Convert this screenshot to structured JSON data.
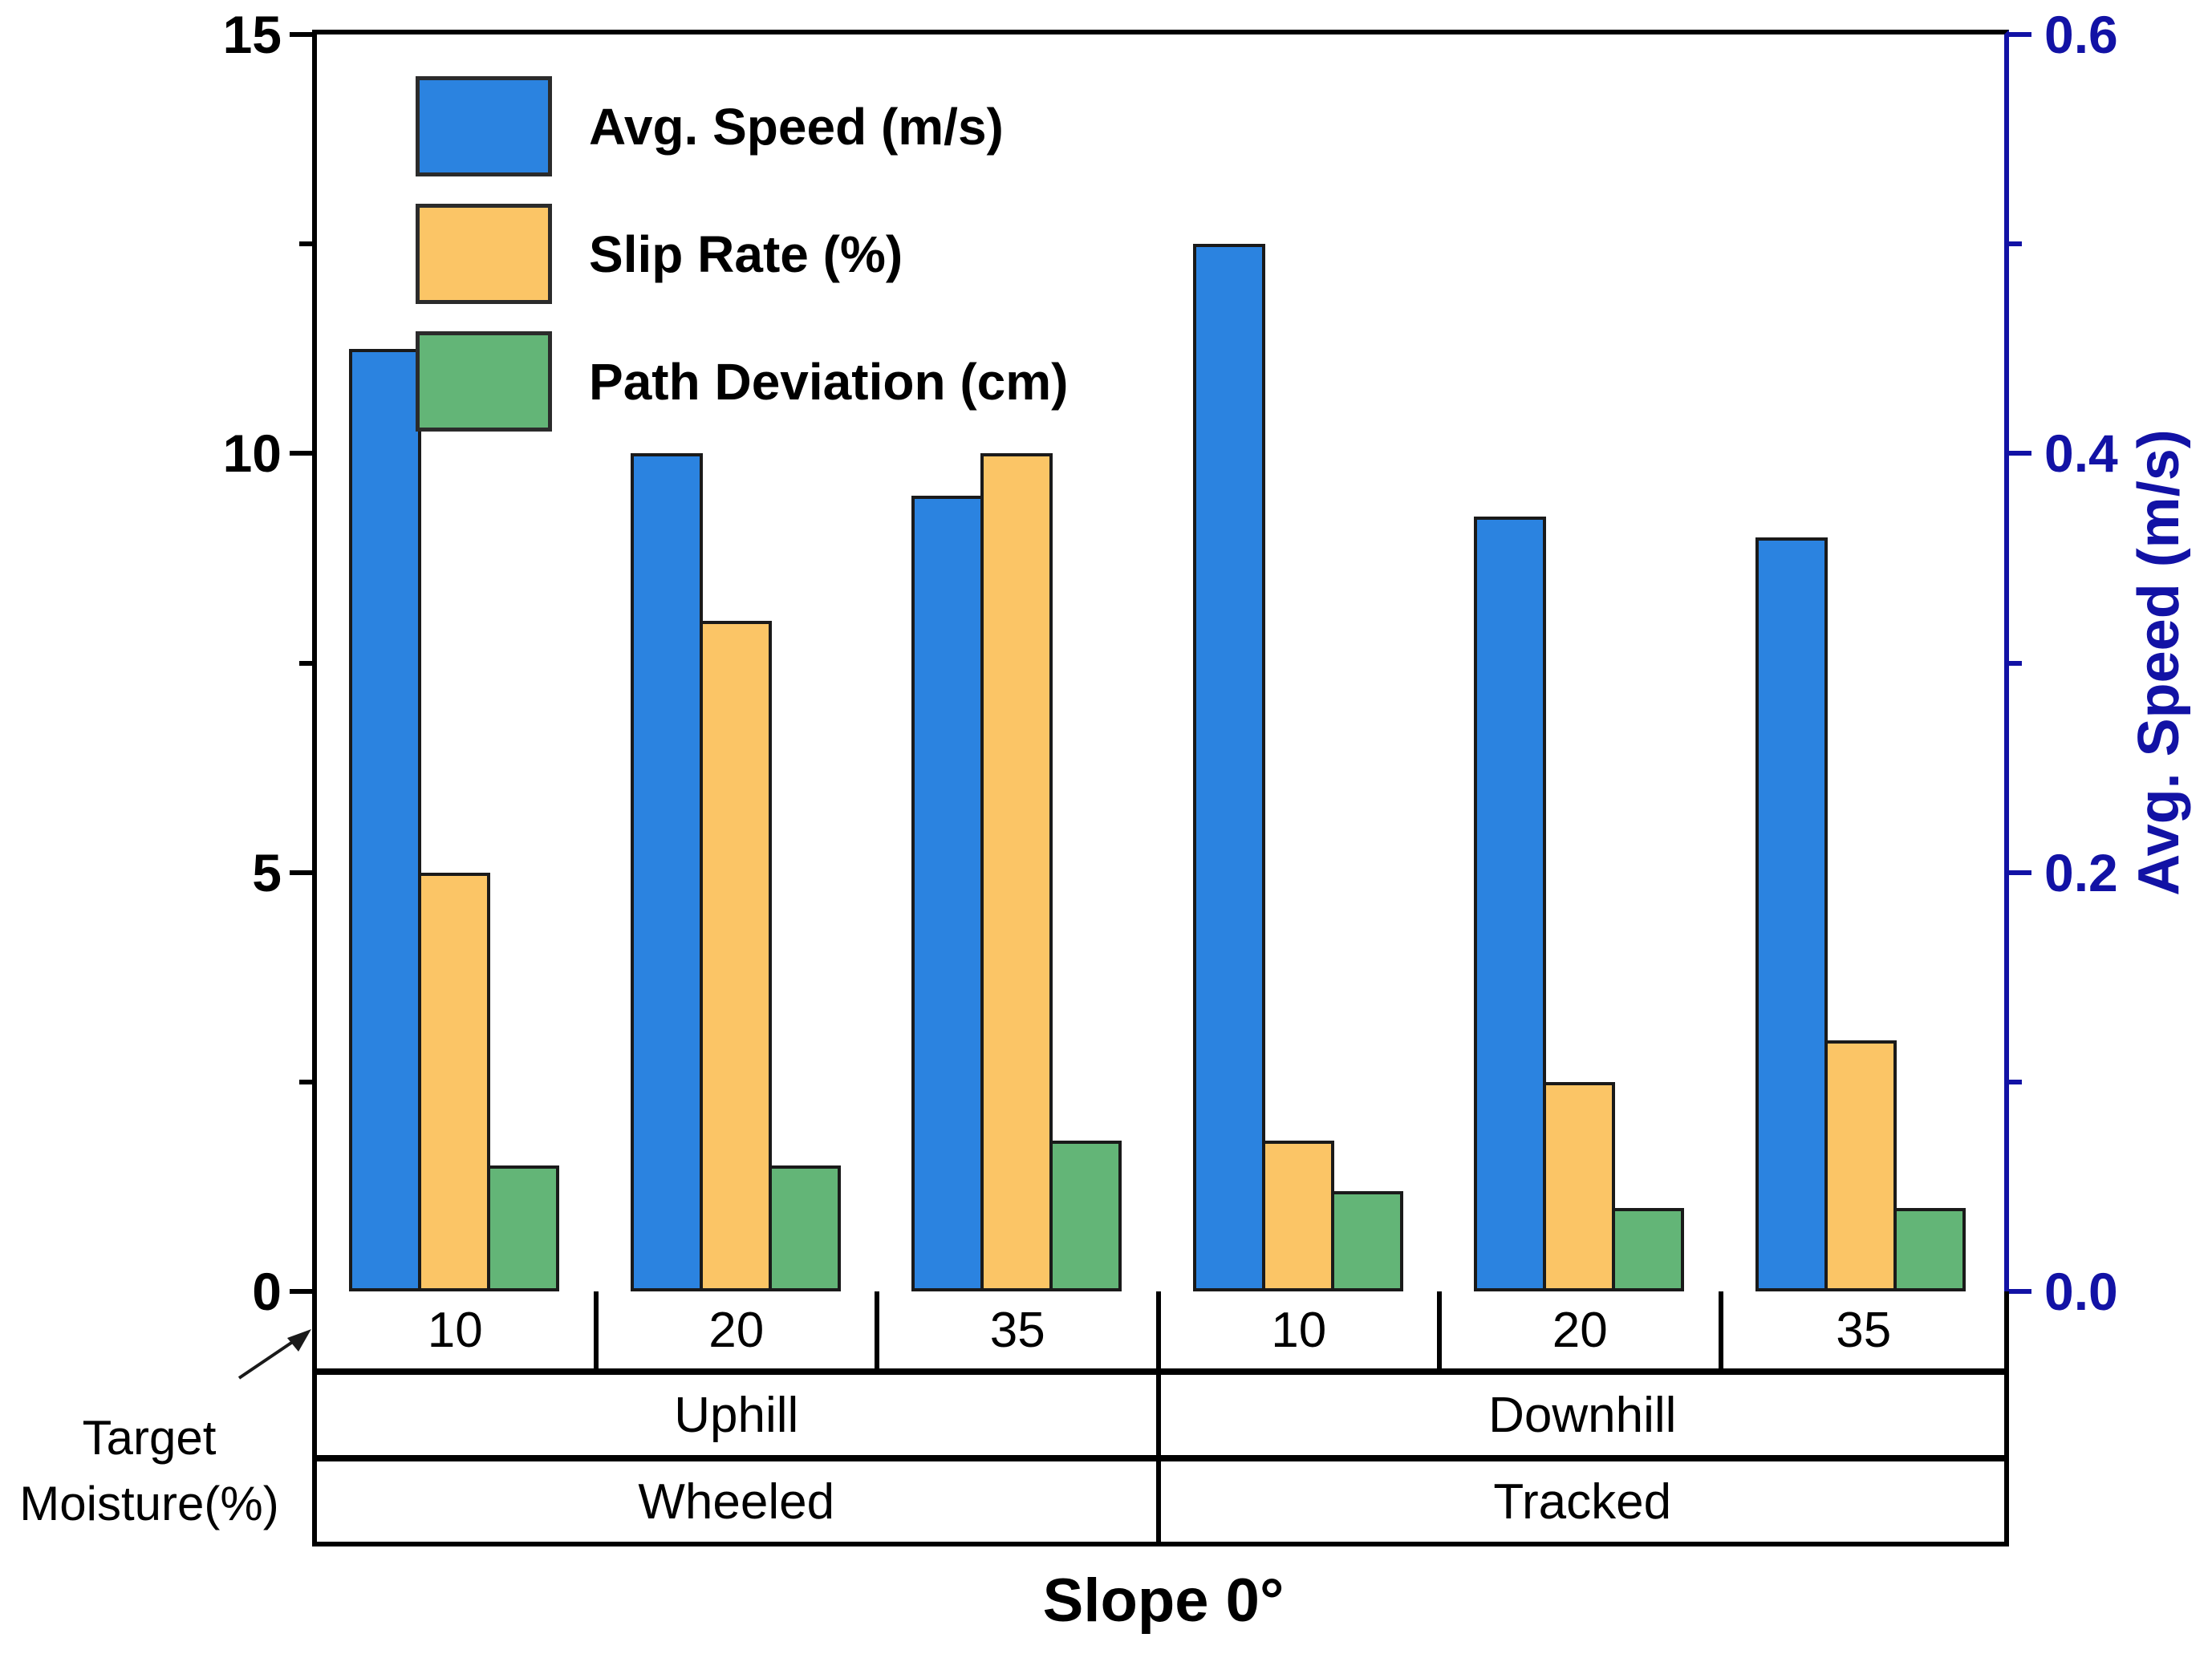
{
  "figure": {
    "title": "Slope 0°",
    "row_caption_line1": "Target",
    "row_caption_line2": "Moisture(%)"
  },
  "chart_data": {
    "type": "bar",
    "title": "Slope 0°",
    "legend_position": "top-left",
    "grid": false,
    "left_axis": {
      "range": [
        0,
        15
      ],
      "ticks": [
        0,
        5,
        10,
        15
      ],
      "tick_labels": [
        "0",
        "5",
        "10",
        "15"
      ],
      "minor_ticks": [
        2.5,
        7.5,
        12.5
      ]
    },
    "right_axis": {
      "label": "Avg. Speed (m/s)",
      "range": [
        0,
        0.6
      ],
      "ticks": [
        0,
        0.2,
        0.4,
        0.6
      ],
      "tick_labels": [
        "0.0",
        "0.2",
        "0.4",
        "0.6"
      ],
      "minor_ticks": [
        0.1,
        0.3,
        0.5
      ],
      "color": "#1212A5"
    },
    "categories_moisture": [
      "10",
      "20",
      "35",
      "10",
      "20",
      "35"
    ],
    "category_rows": {
      "direction": [
        "Uphill",
        "Downhill"
      ],
      "locomotion": [
        "Wheeled",
        "Tracked"
      ]
    },
    "series": [
      {
        "name": "Avg. Speed (m/s)",
        "color": "#2B83E0",
        "axis": "right",
        "values": [
          0.45,
          0.4,
          0.38,
          0.5,
          0.37,
          0.36
        ]
      },
      {
        "name": "Slip Rate (%)",
        "color": "#FBC566",
        "axis": "left",
        "values": [
          5.0,
          8.0,
          10.0,
          1.8,
          2.5,
          3.0
        ]
      },
      {
        "name": "Path Deviation (cm)",
        "color": "#63B577",
        "axis": "left",
        "values": [
          1.5,
          1.5,
          1.8,
          1.2,
          1.0,
          1.0
        ]
      }
    ]
  }
}
